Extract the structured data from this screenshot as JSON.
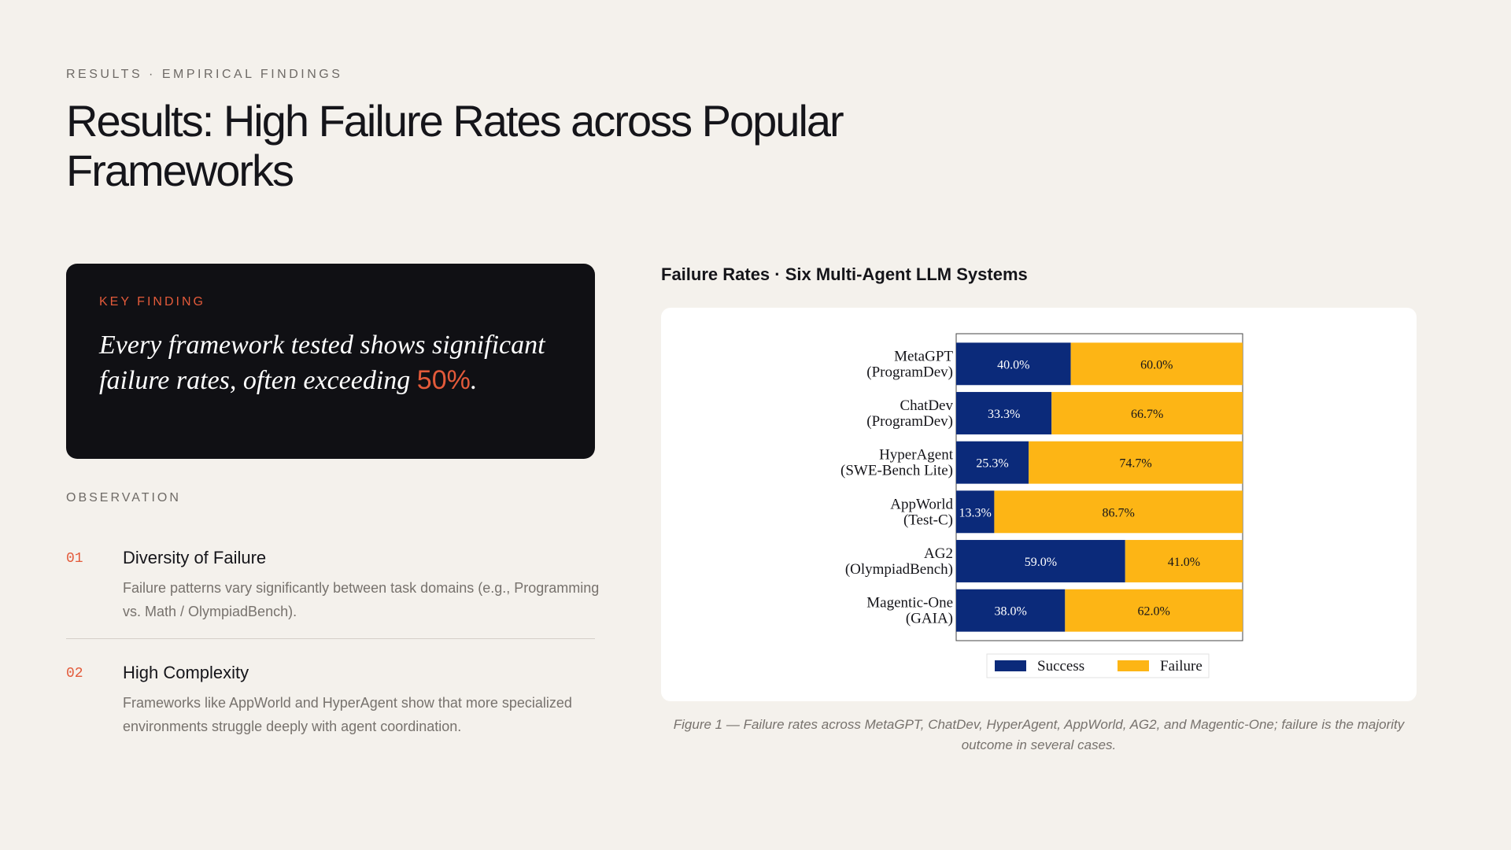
{
  "header": {
    "eyebrow": "RESULTS · EMPIRICAL FINDINGS",
    "title": "Results: High Failure Rates across Popular Frameworks"
  },
  "key_finding": {
    "label": "KEY FINDING",
    "text": "Every framework tested shows significant failure rates, often exceeding ",
    "highlight": "50%",
    "suffix": "."
  },
  "observation": {
    "label": "OBSERVATION",
    "items": [
      {
        "num": "01",
        "title": "Diversity of Failure",
        "body": "Failure patterns vary significantly between task domains (e.g., Programming vs. Math / OlympiadBench)."
      },
      {
        "num": "02",
        "title": "High Complexity",
        "body": "Frameworks like AppWorld and HyperAgent show that more specialized environments struggle deeply with agent coordination."
      }
    ]
  },
  "chart": {
    "title": "Failure Rates · Six Multi-Agent LLM Systems",
    "caption": "Figure 1 — Failure rates across MetaGPT, ChatDev, HyperAgent, AppWorld, AG2, and Magentic-One; failure is the majority outcome in several cases."
  },
  "chart_data": {
    "type": "bar",
    "orientation": "horizontal",
    "stacked": true,
    "categories": [
      [
        "MetaGPT",
        "(ProgramDev)"
      ],
      [
        "ChatDev",
        "(ProgramDev)"
      ],
      [
        "HyperAgent",
        "(SWE-Bench Lite)"
      ],
      [
        "AppWorld",
        "(Test-C)"
      ],
      [
        "AG2",
        "(OlympiadBench)"
      ],
      [
        "Magentic-One",
        "(GAIA)"
      ]
    ],
    "series": [
      {
        "name": "Success",
        "color": "#0b2a7a",
        "values": [
          40.0,
          33.3,
          25.3,
          13.3,
          59.0,
          38.0
        ],
        "labels": [
          "40.0%",
          "33.3%",
          "25.3%",
          "13.3%",
          "59.0%",
          "38.0%"
        ]
      },
      {
        "name": "Failure",
        "color": "#fdb515",
        "values": [
          60.0,
          66.7,
          74.7,
          86.7,
          41.0,
          62.0
        ],
        "labels": [
          "60.0%",
          "66.7%",
          "74.7%",
          "86.7%",
          "41.0%",
          "62.0%"
        ]
      }
    ],
    "xlim": [
      0,
      100
    ],
    "legend": "bottom-center",
    "grid": false
  }
}
